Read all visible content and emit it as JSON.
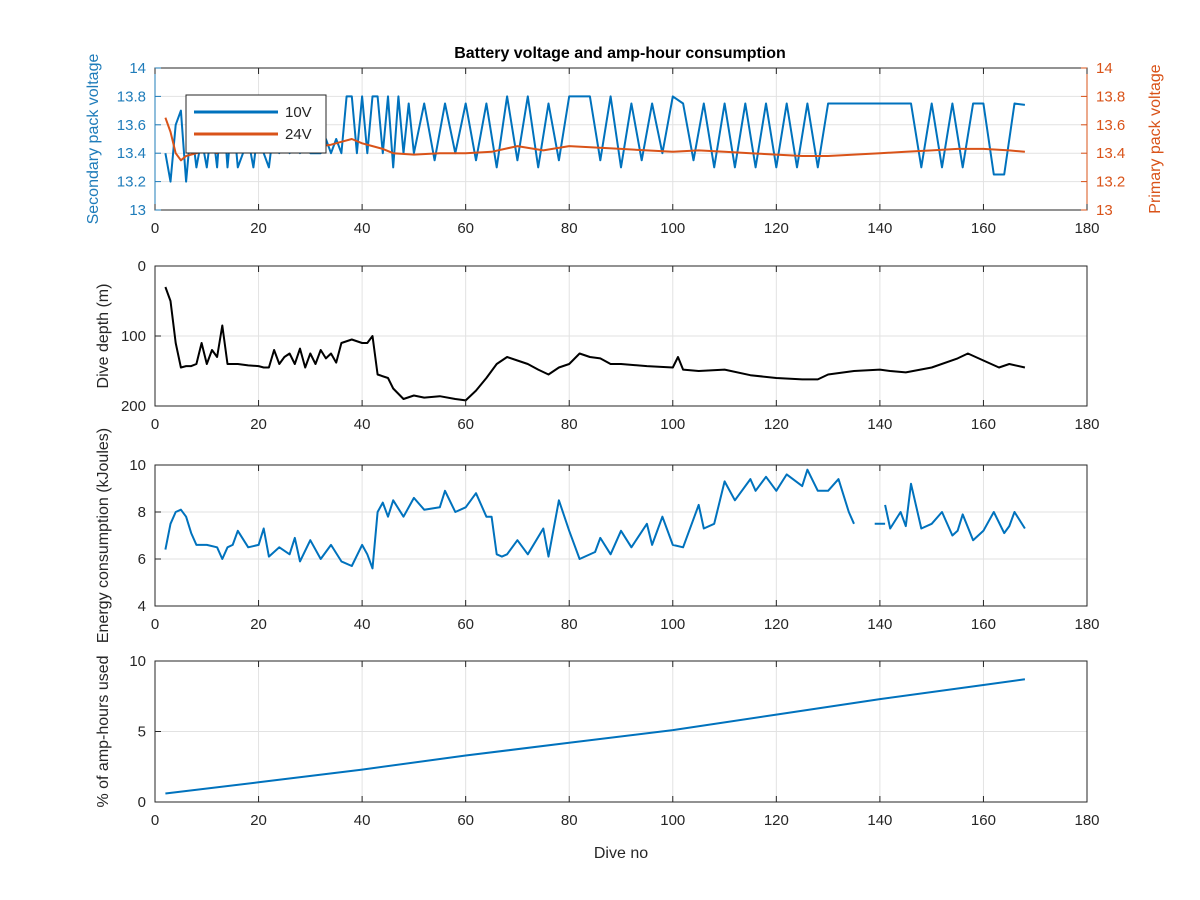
{
  "figure": {
    "title": "Battery voltage and amp-hour consumption"
  },
  "chart_data": [
    {
      "type": "line",
      "title": "Battery voltage and amp-hour consumption",
      "xlabel": "",
      "xlim": [
        0,
        180
      ],
      "xticks": [
        0,
        20,
        40,
        60,
        80,
        100,
        120,
        140,
        160,
        180
      ],
      "grid": true,
      "legend": {
        "placement": "top-left",
        "entries": [
          "10V",
          "24V"
        ]
      },
      "left_axis": {
        "label": "Secondary pack voltage",
        "ylim": [
          13,
          14
        ],
        "ticks": [
          13,
          13.2,
          13.4,
          13.6,
          13.8,
          14
        ],
        "tick_labels": [
          "13",
          "13.2",
          "13.4",
          "13.6",
          "13.8",
          "14"
        ],
        "color": "#1f7cba"
      },
      "right_axis": {
        "label": "Primary pack voltage",
        "ylim": [
          13,
          14
        ],
        "ticks": [
          13,
          13.2,
          13.4,
          13.6,
          13.8,
          14
        ],
        "tick_labels": [
          "13",
          "13.2",
          "13.4",
          "13.6",
          "13.8",
          "14"
        ],
        "color": "#d95319"
      },
      "series": [
        {
          "name": "10V",
          "axis": "left",
          "color": "#0072bd",
          "x": [
            2,
            3,
            4,
            5,
            6,
            7,
            8,
            9,
            10,
            11,
            12,
            13,
            14,
            15,
            16,
            17,
            18,
            19,
            20,
            21,
            22,
            23,
            24,
            25,
            26,
            27,
            28,
            29,
            30,
            31,
            32,
            33,
            34,
            35,
            36,
            37,
            38,
            39,
            40,
            41,
            42,
            43,
            44,
            45,
            46,
            47,
            48,
            49,
            50,
            52,
            54,
            56,
            58,
            60,
            62,
            64,
            66,
            68,
            70,
            72,
            74,
            76,
            78,
            80,
            82,
            84,
            86,
            88,
            90,
            92,
            94,
            96,
            98,
            100,
            102,
            104,
            106,
            108,
            110,
            112,
            114,
            116,
            118,
            120,
            122,
            124,
            126,
            128,
            130,
            132,
            134,
            136,
            138,
            140,
            142,
            144,
            146,
            148,
            150,
            152,
            154,
            156,
            158,
            160,
            162,
            164,
            166,
            168
          ],
          "y": [
            13.4,
            13.2,
            13.6,
            13.7,
            13.2,
            13.6,
            13.3,
            13.5,
            13.3,
            13.6,
            13.3,
            13.8,
            13.3,
            13.7,
            13.3,
            13.4,
            13.5,
            13.3,
            13.6,
            13.4,
            13.3,
            13.6,
            13.4,
            13.5,
            13.4,
            13.6,
            13.4,
            13.5,
            13.4,
            13.4,
            13.4,
            13.5,
            13.4,
            13.5,
            13.4,
            13.8,
            13.8,
            13.4,
            13.8,
            13.4,
            13.8,
            13.8,
            13.4,
            13.8,
            13.3,
            13.8,
            13.4,
            13.75,
            13.4,
            13.75,
            13.35,
            13.75,
            13.4,
            13.75,
            13.35,
            13.75,
            13.3,
            13.8,
            13.35,
            13.8,
            13.3,
            13.75,
            13.35,
            13.8,
            13.8,
            13.8,
            13.35,
            13.8,
            13.3,
            13.75,
            13.35,
            13.75,
            13.4,
            13.8,
            13.75,
            13.35,
            13.75,
            13.3,
            13.75,
            13.3,
            13.75,
            13.3,
            13.75,
            13.3,
            13.75,
            13.3,
            13.75,
            13.3,
            13.75,
            13.75,
            13.75,
            13.75,
            13.75,
            13.75,
            13.75,
            13.75,
            13.75,
            13.3,
            13.75,
            13.3,
            13.75,
            13.3,
            13.75,
            13.75,
            13.25,
            13.25,
            13.75,
            13.74
          ]
        },
        {
          "name": "24V",
          "axis": "right",
          "color": "#d95319",
          "x": [
            2,
            3,
            4,
            5,
            6,
            8,
            10,
            12,
            14,
            16,
            18,
            20,
            22,
            24,
            26,
            28,
            30,
            32,
            34,
            36,
            38,
            40,
            42,
            44,
            46,
            50,
            55,
            60,
            65,
            70,
            75,
            80,
            85,
            90,
            95,
            100,
            105,
            110,
            115,
            120,
            125,
            130,
            135,
            140,
            145,
            150,
            155,
            160,
            165,
            168
          ],
          "y": [
            13.65,
            13.55,
            13.4,
            13.35,
            13.38,
            13.4,
            13.42,
            13.4,
            13.45,
            13.44,
            13.42,
            13.46,
            13.43,
            13.44,
            13.45,
            13.43,
            13.46,
            13.45,
            13.46,
            13.48,
            13.5,
            13.47,
            13.45,
            13.43,
            13.4,
            13.39,
            13.4,
            13.4,
            13.41,
            13.45,
            13.42,
            13.45,
            13.44,
            13.43,
            13.42,
            13.41,
            13.42,
            13.41,
            13.4,
            13.39,
            13.38,
            13.38,
            13.39,
            13.4,
            13.41,
            13.42,
            13.43,
            13.43,
            13.42,
            13.41
          ]
        }
      ]
    },
    {
      "type": "line",
      "xlabel": "",
      "ylabel": "Dive depth (m)",
      "xlim": [
        0,
        180
      ],
      "ylim": [
        0,
        200
      ],
      "y_reversed": true,
      "xticks": [
        0,
        20,
        40,
        60,
        80,
        100,
        120,
        140,
        160,
        180
      ],
      "yticks": [
        0,
        100,
        200
      ],
      "grid": true,
      "series": [
        {
          "color": "#000000",
          "x": [
            2,
            3,
            4,
            5,
            6,
            7,
            8,
            9,
            10,
            11,
            12,
            13,
            14,
            16,
            18,
            20,
            21,
            22,
            23,
            24,
            25,
            26,
            27,
            28,
            29,
            30,
            31,
            32,
            33,
            34,
            35,
            36,
            38,
            40,
            41,
            42,
            43,
            45,
            46,
            48,
            50,
            52,
            55,
            58,
            60,
            62,
            64,
            66,
            68,
            70,
            72,
            74,
            76,
            78,
            80,
            82,
            84,
            86,
            88,
            90,
            95,
            100,
            101,
            102,
            105,
            110,
            115,
            120,
            125,
            128,
            130,
            135,
            140,
            142,
            145,
            150,
            155,
            157,
            160,
            163,
            165,
            168
          ],
          "y": [
            30,
            50,
            110,
            145,
            143,
            143,
            140,
            110,
            140,
            120,
            130,
            85,
            140,
            140,
            142,
            143,
            145,
            145,
            120,
            140,
            130,
            125,
            140,
            118,
            145,
            125,
            140,
            120,
            132,
            125,
            138,
            110,
            105,
            110,
            110,
            100,
            155,
            160,
            175,
            190,
            185,
            188,
            186,
            190,
            192,
            178,
            160,
            140,
            130,
            135,
            140,
            148,
            155,
            145,
            140,
            125,
            130,
            132,
            140,
            140,
            143,
            145,
            130,
            148,
            150,
            148,
            156,
            160,
            162,
            162,
            155,
            150,
            148,
            150,
            152,
            145,
            132,
            125,
            135,
            145,
            140,
            145
          ]
        }
      ]
    },
    {
      "type": "line",
      "xlabel": "",
      "ylabel": "Energy consumption (kJoules)",
      "xlim": [
        0,
        180
      ],
      "ylim": [
        4,
        10
      ],
      "xticks": [
        0,
        20,
        40,
        60,
        80,
        100,
        120,
        140,
        160,
        180
      ],
      "yticks": [
        4,
        6,
        8,
        10
      ],
      "grid": true,
      "series": [
        {
          "color": "#0072bd",
          "x": [
            2,
            3,
            4,
            5,
            6,
            7,
            8,
            10,
            12,
            13,
            14,
            15,
            16,
            18,
            20,
            21,
            22,
            24,
            26,
            27,
            28,
            30,
            32,
            34,
            36,
            38,
            40,
            41,
            42,
            43,
            44,
            45,
            46,
            48,
            50,
            52,
            55,
            56,
            58,
            60,
            62,
            64,
            65,
            66,
            67,
            68,
            70,
            72,
            75,
            76,
            78,
            80,
            82,
            85,
            86,
            88,
            90,
            92,
            95,
            96,
            98,
            100,
            102,
            105,
            106,
            108,
            110,
            112,
            115,
            116,
            118,
            120,
            122,
            125,
            126,
            128,
            130,
            132,
            134,
            135,
            null,
            139,
            141,
            null,
            141,
            142,
            144,
            145,
            146,
            148,
            150,
            152,
            154,
            155,
            156,
            158,
            160,
            162,
            164,
            165,
            166,
            168
          ],
          "y": [
            6.4,
            7.5,
            8.0,
            8.1,
            7.8,
            7.1,
            6.6,
            6.6,
            6.5,
            6.0,
            6.5,
            6.6,
            7.2,
            6.5,
            6.6,
            7.3,
            6.1,
            6.5,
            6.2,
            6.9,
            5.9,
            6.8,
            6.0,
            6.6,
            5.9,
            5.7,
            6.6,
            6.2,
            5.6,
            8.0,
            8.4,
            7.8,
            8.5,
            7.8,
            8.6,
            8.1,
            8.2,
            8.9,
            8.0,
            8.2,
            8.8,
            7.8,
            7.8,
            6.2,
            6.1,
            6.2,
            6.8,
            6.2,
            7.3,
            6.1,
            8.5,
            7.2,
            6.0,
            6.3,
            6.9,
            6.2,
            7.2,
            6.5,
            7.5,
            6.6,
            7.8,
            6.6,
            6.5,
            8.3,
            7.3,
            7.5,
            9.3,
            8.5,
            9.4,
            8.9,
            9.5,
            8.9,
            9.6,
            9.1,
            9.8,
            8.9,
            8.9,
            9.4,
            8.0,
            7.5,
            null,
            7.5,
            7.5,
            null,
            8.3,
            7.3,
            8.0,
            7.4,
            9.2,
            7.3,
            7.5,
            8.0,
            7.0,
            7.2,
            7.9,
            6.8,
            7.2,
            8.0,
            7.1,
            7.4,
            8.0,
            7.3
          ]
        }
      ]
    },
    {
      "type": "line",
      "xlabel": "Dive no",
      "ylabel": "% of amp-hours used",
      "xlim": [
        0,
        180
      ],
      "ylim": [
        0,
        10
      ],
      "xticks": [
        0,
        20,
        40,
        60,
        80,
        100,
        120,
        140,
        160,
        180
      ],
      "yticks": [
        0,
        5,
        10
      ],
      "grid": true,
      "series": [
        {
          "color": "#0072bd",
          "x": [
            2,
            20,
            40,
            60,
            80,
            100,
            120,
            140,
            160,
            168
          ],
          "y": [
            0.6,
            1.4,
            2.3,
            3.3,
            4.2,
            5.1,
            6.2,
            7.3,
            8.3,
            8.7
          ]
        }
      ]
    }
  ]
}
